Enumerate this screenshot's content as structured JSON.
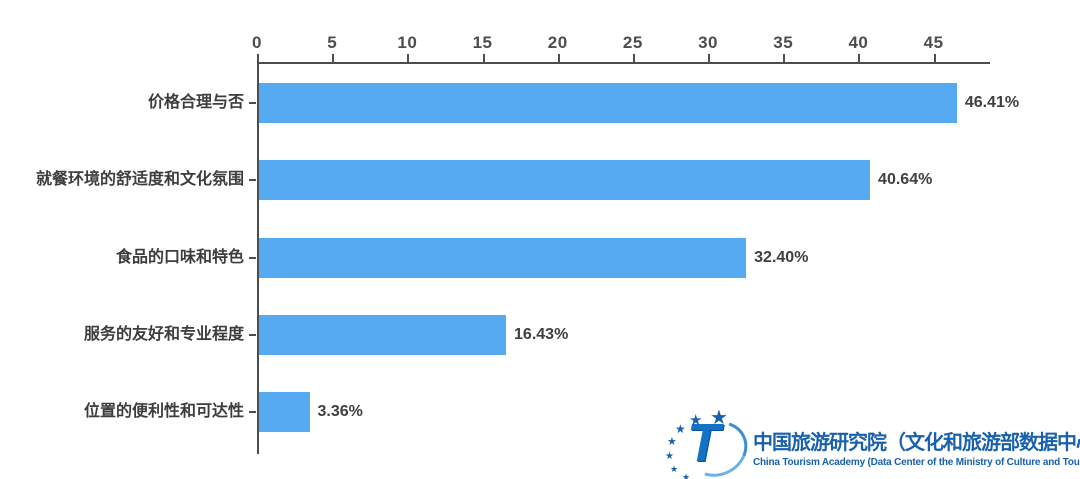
{
  "chart_data": {
    "type": "bar",
    "orientation": "horizontal",
    "title": "",
    "xlabel": "",
    "ylabel": "",
    "categories": [
      "价格合理与否",
      "就餐环境的舒适度和文化氛围",
      "食品的口味和特色",
      "服务的友好和专业程度",
      "位置的便利性和可达性"
    ],
    "values": [
      46.41,
      40.64,
      32.4,
      16.43,
      3.36
    ],
    "value_labels": [
      "46.41%",
      "40.64%",
      "32.40%",
      "16.43%",
      "3.36%"
    ],
    "x_ticks": [
      0,
      5,
      10,
      15,
      20,
      25,
      30,
      35,
      40,
      45
    ],
    "xlim": [
      0,
      48.75
    ],
    "grid": false,
    "legend": "none",
    "bar_color": "#55aaf2",
    "axis_color": "#4d4d4d",
    "label_color": "#3d3d3d"
  },
  "footer_logo": {
    "star_icon": "★",
    "t_mark": "T",
    "title_cn": "中国旅游研究院（文化和旅游部数据中心）",
    "title_en": "China Tourism Academy (Data Center of the Ministry of Culture and Tourism)",
    "brand_color": "#1961ac"
  }
}
